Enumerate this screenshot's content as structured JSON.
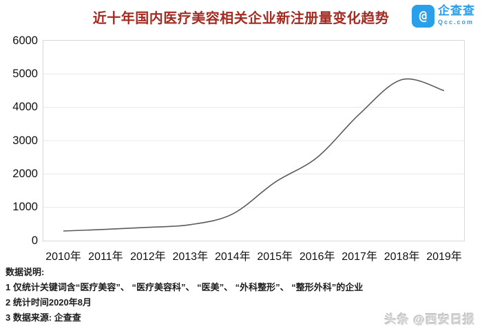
{
  "header": {
    "title": "近十年国内医疗美容相关企业新注册量变化趋势",
    "logo": {
      "name": "企查查",
      "domain": "Qcc.com"
    }
  },
  "chart_data": {
    "type": "line",
    "title": "近十年国内医疗美容相关企业新注册量变化趋势",
    "categories": [
      "2010年",
      "2011年",
      "2012年",
      "2013年",
      "2014年",
      "2015年",
      "2016年",
      "2017年",
      "2018年",
      "2019年"
    ],
    "values": [
      290,
      340,
      400,
      480,
      800,
      1750,
      2500,
      3800,
      4830,
      4500
    ],
    "ylim": [
      0,
      6000
    ],
    "yticks": [
      0,
      1000,
      2000,
      3000,
      4000,
      5000,
      6000
    ],
    "grid": true,
    "smooth": true,
    "legend": "none",
    "line_color": "#5a5a5a",
    "grid_color": "#e7e7e7"
  },
  "notes": {
    "heading": "数据说明:",
    "items": [
      "1 仅统计关键词含“医疗美容”、 “医疗美容科”、 “医美”、 “外科整形”、 “整形外科”的企业",
      "2 统计时间2020年8月",
      "3 数据来源: 企查查"
    ]
  },
  "watermark": "头条 @西安日报",
  "colors": {
    "title": "#a32b22",
    "brand_blue": "#29a0e9",
    "line": "#5a5a5a",
    "grid": "#e7e7e7",
    "axis_text": "#111111",
    "watermark": "#d3d3d3"
  }
}
